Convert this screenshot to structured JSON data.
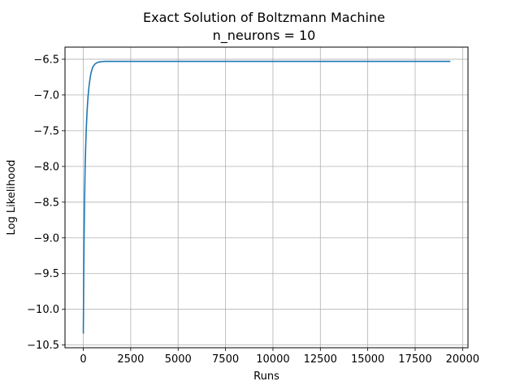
{
  "chart_data": {
    "type": "line",
    "title": "Exact Solution of Boltzmann Machine",
    "subtitle": "n_neurons = 10",
    "xlabel": "Runs",
    "ylabel": "Log Likelihood",
    "xlim": [
      -966,
      20286
    ],
    "ylim": [
      -10.538,
      -6.33
    ],
    "xticks": [
      0,
      2500,
      5000,
      7500,
      10000,
      12500,
      15000,
      17500,
      20000
    ],
    "xtick_labels": [
      "0",
      "2500",
      "5000",
      "7500",
      "10000",
      "12500",
      "15000",
      "17500",
      "20000"
    ],
    "yticks": [
      -10.5,
      -10.0,
      -9.5,
      -9.0,
      -8.5,
      -8.0,
      -7.5,
      -7.0,
      -6.5
    ],
    "ytick_labels": [
      "−10.5",
      "−10.0",
      "−9.5",
      "−9.0",
      "−8.5",
      "−8.0",
      "−7.5",
      "−7.0",
      "−6.5"
    ],
    "grid": true,
    "series": [
      {
        "color": "#1f77b4",
        "x": [
          0,
          20,
          40,
          60,
          80,
          100,
          130,
          160,
          200,
          250,
          300,
          350,
          400,
          450,
          500,
          550,
          600,
          650,
          700,
          800,
          900,
          1000,
          1200,
          1500,
          2000,
          3000,
          5000,
          10000,
          15000,
          19320
        ],
        "y": [
          -10.33,
          -9.62,
          -9.0,
          -8.58,
          -8.25,
          -7.95,
          -7.68,
          -7.45,
          -7.22,
          -7.02,
          -6.88,
          -6.78,
          -6.7,
          -6.65,
          -6.61,
          -6.59,
          -6.57,
          -6.56,
          -6.55,
          -6.54,
          -6.535,
          -6.532,
          -6.53,
          -6.53,
          -6.53,
          -6.53,
          -6.53,
          -6.53,
          -6.53,
          -6.53
        ]
      }
    ]
  }
}
